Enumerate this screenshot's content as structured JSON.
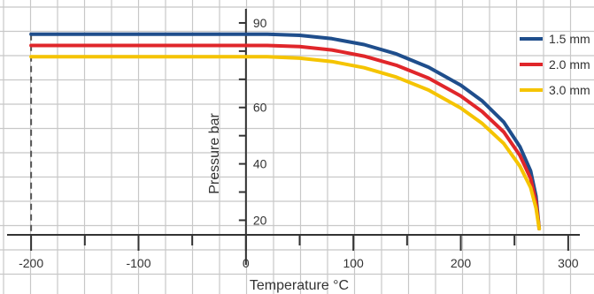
{
  "chart_data": {
    "type": "line",
    "xlabel": "Temperature °C",
    "ylabel": "Pressure bar",
    "xlim": [
      -210,
      310
    ],
    "ylim": [
      12,
      95
    ],
    "x_ticks": [
      -200,
      -100,
      0,
      100,
      200,
      300
    ],
    "y_ticks": [
      20,
      40,
      60,
      90
    ],
    "grid": true,
    "legend_position": "top-right",
    "series": [
      {
        "name": "1.5 mm",
        "color": "#1f4e8c",
        "x": [
          -200,
          0,
          20,
          50,
          80,
          110,
          140,
          170,
          200,
          220,
          240,
          255,
          265,
          270,
          273
        ],
        "y": [
          86,
          86,
          86,
          85.6,
          84.4,
          82.3,
          79,
          74.3,
          67.9,
          62.3,
          54.8,
          46.1,
          37.5,
          28.5,
          17
        ]
      },
      {
        "name": "2.0 mm",
        "color": "#e0262a",
        "x": [
          -200,
          0,
          20,
          50,
          80,
          110,
          140,
          170,
          200,
          220,
          240,
          255,
          265,
          270,
          273
        ],
        "y": [
          82,
          82,
          82,
          81.6,
          80.4,
          78.2,
          75,
          70.4,
          64.1,
          58.5,
          51.3,
          43,
          34.8,
          26.4,
          17
        ]
      },
      {
        "name": "3.0 mm",
        "color": "#f5c400",
        "x": [
          -200,
          0,
          20,
          50,
          80,
          110,
          140,
          170,
          200,
          220,
          240,
          255,
          265,
          270,
          273
        ],
        "y": [
          78,
          78,
          78,
          77.5,
          76.3,
          74.1,
          70.8,
          66.2,
          59.8,
          54.3,
          47.2,
          39.2,
          31.6,
          24.3,
          17
        ]
      }
    ]
  }
}
